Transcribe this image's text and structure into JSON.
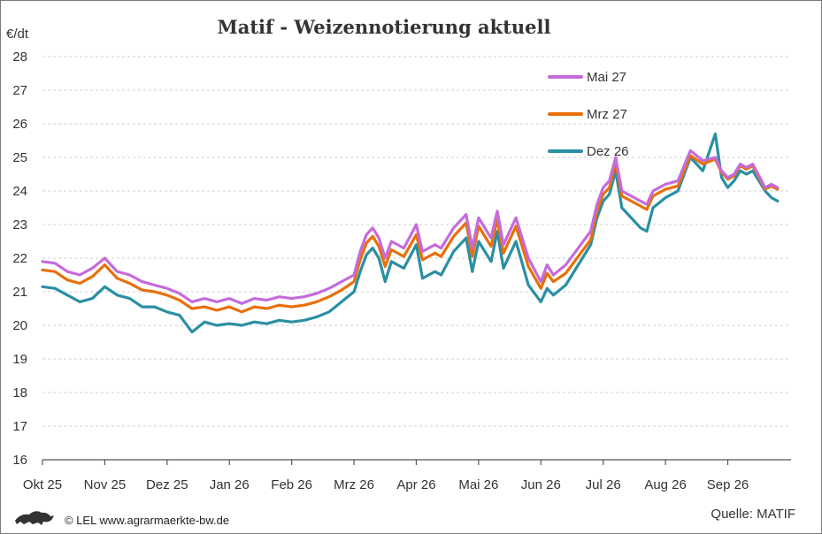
{
  "footer": {
    "credit": "© LEL www.agrarmaerkte-bw.de",
    "source": "Quelle: MATIF",
    "logo_icon": "lion-logo-icon"
  },
  "chart_data": {
    "type": "line",
    "title": "Matif - Weizennotierung aktuell",
    "ylabel": "€/dt",
    "xlabel": "",
    "ylim": [
      16,
      28
    ],
    "yticks": [
      16,
      17,
      18,
      19,
      20,
      21,
      22,
      23,
      24,
      25,
      26,
      27,
      28
    ],
    "x_range": [
      0,
      11.9
    ],
    "grid": "horizontal dashed",
    "legend_position": "top-right",
    "categories": [
      "Okt 25",
      "Nov 25",
      "Dez 25",
      "Jan 26",
      "Feb 26",
      "Mrz 26",
      "Apr 26",
      "Mai 26",
      "Jun 26",
      "Jul 26",
      "Aug 26",
      "Sep 26"
    ],
    "series": [
      {
        "name": "Mai 27",
        "color": "#c56bdc",
        "x": [
          0,
          0.2,
          0.4,
          0.6,
          0.8,
          1.0,
          1.2,
          1.4,
          1.6,
          1.8,
          2.0,
          2.2,
          2.4,
          2.6,
          2.8,
          3.0,
          3.2,
          3.4,
          3.6,
          3.8,
          4.0,
          4.2,
          4.4,
          4.6,
          4.8,
          5.0,
          5.1,
          5.2,
          5.3,
          5.4,
          5.5,
          5.6,
          5.8,
          6.0,
          6.1,
          6.2,
          6.3,
          6.4,
          6.6,
          6.8,
          6.9,
          7.0,
          7.2,
          7.3,
          7.4,
          7.6,
          7.8,
          8.0,
          8.1,
          8.2,
          8.4,
          8.6,
          8.8,
          8.9,
          9.0,
          9.1,
          9.2,
          9.3,
          9.4,
          9.6,
          9.7,
          9.8,
          10.0,
          10.2,
          10.4,
          10.6,
          10.8,
          10.9,
          11.0,
          11.1,
          11.2,
          11.3,
          11.4,
          11.6,
          11.7,
          11.8
        ],
        "values": [
          21.9,
          21.85,
          21.6,
          21.5,
          21.7,
          22.0,
          21.6,
          21.5,
          21.3,
          21.2,
          21.1,
          20.95,
          20.7,
          20.8,
          20.7,
          20.8,
          20.65,
          20.8,
          20.75,
          20.85,
          20.8,
          20.85,
          20.95,
          21.1,
          21.3,
          21.5,
          22.2,
          22.7,
          22.9,
          22.6,
          22.0,
          22.5,
          22.3,
          23.0,
          22.2,
          22.3,
          22.4,
          22.3,
          22.9,
          23.3,
          22.3,
          23.2,
          22.6,
          23.4,
          22.4,
          23.2,
          22.0,
          21.3,
          21.8,
          21.5,
          21.8,
          22.3,
          22.8,
          23.6,
          24.1,
          24.3,
          25.0,
          24.0,
          23.9,
          23.7,
          23.6,
          24.0,
          24.2,
          24.3,
          25.2,
          24.9,
          25.0,
          24.6,
          24.4,
          24.5,
          24.8,
          24.7,
          24.8,
          24.1,
          24.2,
          24.1
        ]
      },
      {
        "name": "Mrz 27",
        "color": "#e8700a",
        "x": [
          0,
          0.2,
          0.4,
          0.6,
          0.8,
          1.0,
          1.2,
          1.4,
          1.6,
          1.8,
          2.0,
          2.2,
          2.4,
          2.6,
          2.8,
          3.0,
          3.2,
          3.4,
          3.6,
          3.8,
          4.0,
          4.2,
          4.4,
          4.6,
          4.8,
          5.0,
          5.1,
          5.2,
          5.3,
          5.4,
          5.5,
          5.6,
          5.8,
          6.0,
          6.1,
          6.2,
          6.3,
          6.4,
          6.6,
          6.8,
          6.9,
          7.0,
          7.2,
          7.3,
          7.4,
          7.6,
          7.8,
          8.0,
          8.1,
          8.2,
          8.4,
          8.6,
          8.8,
          8.9,
          9.0,
          9.1,
          9.2,
          9.3,
          9.4,
          9.6,
          9.7,
          9.8,
          10.0,
          10.2,
          10.4,
          10.6,
          10.8,
          10.9,
          11.0,
          11.1,
          11.2,
          11.3,
          11.4,
          11.6,
          11.7,
          11.8
        ],
        "values": [
          21.65,
          21.6,
          21.35,
          21.25,
          21.45,
          21.8,
          21.4,
          21.25,
          21.05,
          21.0,
          20.9,
          20.75,
          20.5,
          20.55,
          20.45,
          20.55,
          20.4,
          20.55,
          20.5,
          20.6,
          20.55,
          20.6,
          20.7,
          20.85,
          21.05,
          21.3,
          21.95,
          22.45,
          22.65,
          22.35,
          21.75,
          22.25,
          22.05,
          22.7,
          21.95,
          22.05,
          22.15,
          22.05,
          22.65,
          23.05,
          22.05,
          22.95,
          22.35,
          23.15,
          22.15,
          22.95,
          21.75,
          21.1,
          21.55,
          21.3,
          21.55,
          22.05,
          22.55,
          23.4,
          23.9,
          24.1,
          24.85,
          23.85,
          23.75,
          23.55,
          23.45,
          23.85,
          24.05,
          24.15,
          25.05,
          24.8,
          24.95,
          24.55,
          24.35,
          24.45,
          24.75,
          24.65,
          24.75,
          24.05,
          24.15,
          24.05
        ]
      },
      {
        "name": "Dez 26",
        "color": "#2a8fa3",
        "x": [
          0,
          0.2,
          0.4,
          0.6,
          0.8,
          1.0,
          1.2,
          1.4,
          1.6,
          1.8,
          2.0,
          2.2,
          2.4,
          2.6,
          2.8,
          3.0,
          3.2,
          3.4,
          3.6,
          3.8,
          4.0,
          4.2,
          4.4,
          4.6,
          4.8,
          5.0,
          5.1,
          5.2,
          5.3,
          5.4,
          5.5,
          5.6,
          5.8,
          6.0,
          6.1,
          6.2,
          6.3,
          6.4,
          6.6,
          6.8,
          6.9,
          7.0,
          7.2,
          7.3,
          7.4,
          7.6,
          7.8,
          8.0,
          8.1,
          8.2,
          8.4,
          8.6,
          8.8,
          8.9,
          9.0,
          9.1,
          9.2,
          9.3,
          9.4,
          9.6,
          9.7,
          9.8,
          10.0,
          10.2,
          10.4,
          10.6,
          10.8,
          10.9,
          11.0,
          11.1,
          11.2,
          11.3,
          11.4,
          11.6,
          11.7,
          11.8
        ],
        "values": [
          21.15,
          21.1,
          20.9,
          20.7,
          20.8,
          21.15,
          20.9,
          20.8,
          20.55,
          20.55,
          20.4,
          20.3,
          19.8,
          20.1,
          20.0,
          20.05,
          20.0,
          20.1,
          20.05,
          20.15,
          20.1,
          20.15,
          20.25,
          20.4,
          20.7,
          21.0,
          21.6,
          22.1,
          22.3,
          22.0,
          21.3,
          21.9,
          21.7,
          22.4,
          21.4,
          21.5,
          21.6,
          21.5,
          22.2,
          22.6,
          21.6,
          22.5,
          21.9,
          22.8,
          21.7,
          22.5,
          21.2,
          20.7,
          21.1,
          20.9,
          21.2,
          21.8,
          22.4,
          23.2,
          23.7,
          23.9,
          24.6,
          23.5,
          23.3,
          22.9,
          22.8,
          23.5,
          23.8,
          24.0,
          25.0,
          24.6,
          25.7,
          24.4,
          24.1,
          24.3,
          24.6,
          24.5,
          24.6,
          24.0,
          23.8,
          23.7
        ]
      }
    ]
  }
}
